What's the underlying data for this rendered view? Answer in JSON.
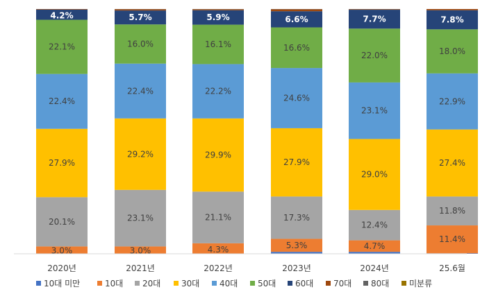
{
  "chart_data": {
    "type": "bar",
    "stacked": true,
    "percent": true,
    "categories": [
      "2020년",
      "2021년",
      "2022년",
      "2023년",
      "2024년",
      "25.6월"
    ],
    "ylim": [
      0,
      100
    ],
    "grid": false,
    "legend_placement": "bottom",
    "series": [
      {
        "name": "10대 미만",
        "color": "#4472C4",
        "values": [
          0.0,
          0.0,
          0.0,
          0.8,
          0.8,
          0.2
        ],
        "labels": [
          "",
          "",
          "",
          "",
          "",
          ""
        ]
      },
      {
        "name": "10대",
        "color": "#ED7D31",
        "values": [
          3.0,
          3.0,
          4.3,
          5.3,
          4.7,
          11.4
        ],
        "labels": [
          "3.0%",
          "3.0%",
          "4.3%",
          "5.3%",
          "4.7%",
          "11.4%"
        ]
      },
      {
        "name": "20대",
        "color": "#A5A5A5",
        "values": [
          20.1,
          23.1,
          21.1,
          17.3,
          12.4,
          11.8
        ],
        "labels": [
          "20.1%",
          "23.1%",
          "21.1%",
          "17.3%",
          "12.4%",
          "11.8%"
        ]
      },
      {
        "name": "30대",
        "color": "#FFC000",
        "values": [
          27.9,
          29.2,
          29.9,
          27.9,
          29.0,
          27.4
        ],
        "labels": [
          "27.9%",
          "29.2%",
          "29.9%",
          "27.9%",
          "29.0%",
          "27.4%"
        ]
      },
      {
        "name": "40대",
        "color": "#5B9BD5",
        "values": [
          22.4,
          22.4,
          22.2,
          24.6,
          23.1,
          22.9
        ],
        "labels": [
          "22.4%",
          "22.4%",
          "22.2%",
          "24.6%",
          "23.1%",
          "22.9%"
        ]
      },
      {
        "name": "50대",
        "color": "#70AD47",
        "values": [
          22.1,
          16.0,
          16.1,
          16.6,
          22.0,
          18.0
        ],
        "labels": [
          "22.1%",
          "16.0%",
          "16.1%",
          "16.6%",
          "22.0%",
          "18.0%"
        ]
      },
      {
        "name": "60대",
        "color": "#264478",
        "values": [
          4.2,
          5.7,
          5.9,
          6.6,
          7.7,
          7.8
        ],
        "labels": [
          "4.2%",
          "5.7%",
          "5.9%",
          "6.6%",
          "7.7%",
          "7.8%"
        ]
      },
      {
        "name": "70대",
        "color": "#9E480E",
        "values": [
          0.2,
          0.5,
          0.4,
          0.8,
          0.2,
          0.5
        ],
        "labels": [
          "",
          "",
          "",
          "",
          "",
          ""
        ]
      },
      {
        "name": "80대",
        "color": "#636363",
        "values": [
          0.0,
          0.1,
          0.1,
          0.1,
          0.1,
          0.0
        ],
        "labels": [
          "",
          "",
          "",
          "",
          "",
          ""
        ]
      },
      {
        "name": "미분류",
        "color": "#997300",
        "values": [
          0.0,
          0.0,
          0.0,
          0.0,
          0.0,
          0.0
        ],
        "labels": [
          "",
          "",
          "",
          "",
          "",
          ""
        ]
      }
    ]
  }
}
